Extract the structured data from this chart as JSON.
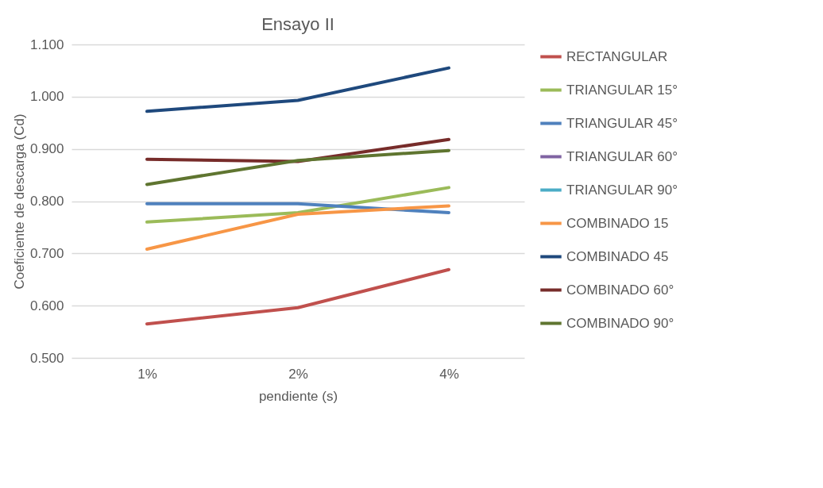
{
  "chart_data": {
    "type": "line",
    "title": "Ensayo II",
    "xlabel": "pendiente (s)",
    "ylabel": "Coeficiente de descarga (Cd)",
    "categories": [
      "1%",
      "2%",
      "4%"
    ],
    "series": [
      {
        "name": "RECTANGULAR",
        "color": "#c0504d",
        "values": [
          0.565,
          0.596,
          0.669
        ]
      },
      {
        "name": "TRIANGULAR 15°",
        "color": "#9bbb59",
        "values": [
          0.76,
          0.778,
          0.826
        ]
      },
      {
        "name": "TRIANGULAR 45°",
        "color": "#4f81bd",
        "values": [
          0.795,
          0.795,
          0.778
        ]
      },
      {
        "name": "TRIANGULAR  60°",
        "color": "#8064a2",
        "values": [
          null,
          null,
          null
        ]
      },
      {
        "name": "TRIANGULAR 90°",
        "color": "#4bacc6",
        "values": [
          null,
          null,
          null
        ]
      },
      {
        "name": "COMBINADO 15",
        "color": "#f79646",
        "values": [
          0.708,
          0.775,
          0.791
        ]
      },
      {
        "name": "COMBINADO 45",
        "color": "#1f497d",
        "values": [
          0.972,
          0.993,
          1.055
        ]
      },
      {
        "name": "COMBINADO 60°",
        "color": "#772c2a",
        "values": [
          0.88,
          0.876,
          0.918
        ]
      },
      {
        "name": "COMBINADO 90°",
        "color": "#5f7530",
        "values": [
          0.832,
          0.878,
          0.897
        ]
      }
    ],
    "ylim": [
      0.5,
      1.1
    ],
    "yticks": [
      {
        "value": 0.5,
        "label": "0.500"
      },
      {
        "value": 0.6,
        "label": "0.600"
      },
      {
        "value": 0.7,
        "label": "0.700"
      },
      {
        "value": 0.8,
        "label": "0.800"
      },
      {
        "value": 0.9,
        "label": "0.900"
      },
      {
        "value": 1.0,
        "label": "1.000"
      },
      {
        "value": 1.1,
        "label": "1.100"
      }
    ],
    "grid": "y",
    "legend": "right",
    "marker": "none",
    "line_style": "solid"
  }
}
